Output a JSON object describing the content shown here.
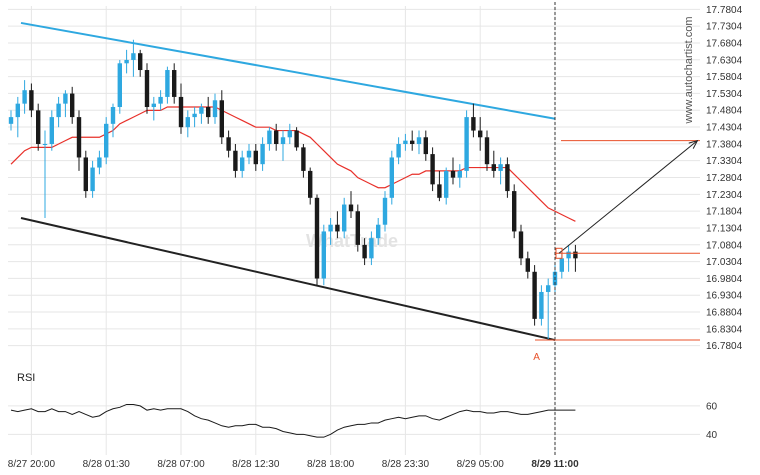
{
  "chart_data": [
    {
      "type": "candlestick",
      "colors": {
        "up": "#2ea8e0",
        "down": "#1a1a1a",
        "ma": "#e8302a",
        "channel_upper": "#2ea8e0",
        "channel_lower": "#222222",
        "target": "#e8512a",
        "current": "#e8512a",
        "arrow": "#222222",
        "vline": "#333333",
        "grid": "#e6e6e6"
      },
      "y_ticks": [
        "17.7804",
        "17.7304",
        "17.6804",
        "17.6304",
        "17.5804",
        "17.5304",
        "17.4804",
        "17.4304",
        "17.3804",
        "17.3304",
        "17.2804",
        "17.2304",
        "17.1804",
        "17.1304",
        "17.0804",
        "17.0304",
        "16.9804",
        "16.9304",
        "16.8804",
        "16.8304",
        "16.7804"
      ],
      "ylim": [
        16.7704,
        17.7904
      ],
      "x_ticks": [
        {
          "label": "8/27 20:00",
          "idx": 3
        },
        {
          "label": "8/28 01:30",
          "idx": 14
        },
        {
          "label": "8/28 07:00",
          "idx": 25
        },
        {
          "label": "8/28 12:30",
          "idx": 36
        },
        {
          "label": "8/28 18:00",
          "idx": 47
        },
        {
          "label": "8/28 23:30",
          "idx": 58
        },
        {
          "label": "8/29 05:00",
          "idx": 69
        },
        {
          "label": "8/29 11:00",
          "idx": 80,
          "bold": true
        }
      ],
      "candles": [
        [
          17.44,
          17.48,
          17.42,
          17.46
        ],
        [
          17.46,
          17.52,
          17.4,
          17.5
        ],
        [
          17.5,
          17.57,
          17.47,
          17.54
        ],
        [
          17.54,
          17.56,
          17.46,
          17.48
        ],
        [
          17.48,
          17.5,
          17.36,
          17.38
        ],
        [
          17.38,
          17.42,
          17.16,
          17.38
        ],
        [
          17.38,
          17.48,
          17.36,
          17.46
        ],
        [
          17.46,
          17.52,
          17.43,
          17.5
        ],
        [
          17.5,
          17.54,
          17.46,
          17.53
        ],
        [
          17.53,
          17.55,
          17.44,
          17.46
        ],
        [
          17.46,
          17.48,
          17.3,
          17.34
        ],
        [
          17.34,
          17.36,
          17.22,
          17.24
        ],
        [
          17.24,
          17.33,
          17.22,
          17.31
        ],
        [
          17.31,
          17.36,
          17.29,
          17.34
        ],
        [
          17.34,
          17.46,
          17.32,
          17.44
        ],
        [
          17.44,
          17.5,
          17.4,
          17.49
        ],
        [
          17.49,
          17.63,
          17.47,
          17.62
        ],
        [
          17.62,
          17.66,
          17.59,
          17.63
        ],
        [
          17.63,
          17.69,
          17.58,
          17.65
        ],
        [
          17.65,
          17.66,
          17.58,
          17.6
        ],
        [
          17.6,
          17.62,
          17.47,
          17.49
        ],
        [
          17.49,
          17.52,
          17.45,
          17.5
        ],
        [
          17.5,
          17.54,
          17.48,
          17.52
        ],
        [
          17.52,
          17.61,
          17.5,
          17.6
        ],
        [
          17.6,
          17.62,
          17.5,
          17.52
        ],
        [
          17.52,
          17.56,
          17.41,
          17.43
        ],
        [
          17.43,
          17.48,
          17.4,
          17.46
        ],
        [
          17.46,
          17.49,
          17.43,
          17.47
        ],
        [
          17.47,
          17.5,
          17.44,
          17.49
        ],
        [
          17.49,
          17.52,
          17.44,
          17.46
        ],
        [
          17.46,
          17.53,
          17.44,
          17.51
        ],
        [
          17.51,
          17.54,
          17.38,
          17.4
        ],
        [
          17.4,
          17.42,
          17.34,
          17.36
        ],
        [
          17.36,
          17.38,
          17.28,
          17.3
        ],
        [
          17.3,
          17.36,
          17.28,
          17.34
        ],
        [
          17.34,
          17.38,
          17.32,
          17.36
        ],
        [
          17.36,
          17.38,
          17.3,
          17.32
        ],
        [
          17.32,
          17.4,
          17.3,
          17.38
        ],
        [
          17.38,
          17.43,
          17.36,
          17.42
        ],
        [
          17.42,
          17.44,
          17.36,
          17.38
        ],
        [
          17.38,
          17.42,
          17.33,
          17.4
        ],
        [
          17.4,
          17.44,
          17.38,
          17.42
        ],
        [
          17.42,
          17.43,
          17.36,
          17.37
        ],
        [
          17.37,
          17.38,
          17.28,
          17.3
        ],
        [
          17.3,
          17.31,
          17.2,
          17.22
        ],
        [
          17.22,
          17.23,
          16.96,
          16.98
        ],
        [
          16.98,
          17.14,
          16.96,
          17.12
        ],
        [
          17.12,
          17.16,
          17.08,
          17.14
        ],
        [
          17.14,
          17.18,
          17.1,
          17.12
        ],
        [
          17.12,
          17.22,
          17.1,
          17.2
        ],
        [
          17.2,
          17.24,
          17.16,
          17.18
        ],
        [
          17.18,
          17.2,
          17.06,
          17.08
        ],
        [
          17.08,
          17.1,
          17.02,
          17.04
        ],
        [
          17.04,
          17.12,
          17.02,
          17.1
        ],
        [
          17.1,
          17.16,
          17.08,
          17.14
        ],
        [
          17.14,
          17.24,
          17.12,
          17.22
        ],
        [
          17.22,
          17.36,
          17.2,
          17.34
        ],
        [
          17.34,
          17.4,
          17.32,
          17.38
        ],
        [
          17.38,
          17.41,
          17.36,
          17.39
        ],
        [
          17.39,
          17.42,
          17.36,
          17.38
        ],
        [
          17.38,
          17.42,
          17.35,
          17.4
        ],
        [
          17.4,
          17.42,
          17.33,
          17.35
        ],
        [
          17.35,
          17.37,
          17.24,
          17.26
        ],
        [
          17.26,
          17.3,
          17.21,
          17.22
        ],
        [
          17.22,
          17.31,
          17.2,
          17.3
        ],
        [
          17.3,
          17.34,
          17.26,
          17.28
        ],
        [
          17.28,
          17.32,
          17.25,
          17.3
        ],
        [
          17.3,
          17.48,
          17.28,
          17.46
        ],
        [
          17.46,
          17.5,
          17.4,
          17.42
        ],
        [
          17.42,
          17.46,
          17.36,
          17.4
        ],
        [
          17.4,
          17.42,
          17.3,
          17.32
        ],
        [
          17.32,
          17.36,
          17.28,
          17.3
        ],
        [
          17.3,
          17.34,
          17.26,
          17.32
        ],
        [
          17.32,
          17.34,
          17.22,
          17.24
        ],
        [
          17.24,
          17.26,
          17.1,
          17.12
        ],
        [
          17.12,
          17.14,
          17.02,
          17.04
        ],
        [
          17.04,
          17.06,
          16.98,
          17.0
        ],
        [
          17.0,
          17.02,
          16.84,
          16.86
        ],
        [
          16.86,
          16.96,
          16.84,
          16.94
        ],
        [
          16.94,
          16.98,
          16.8,
          16.96
        ],
        [
          16.96,
          17.02,
          16.94,
          17.0
        ],
        [
          17.0,
          17.06,
          16.98,
          17.04
        ],
        [
          17.04,
          17.08,
          17.0,
          17.06
        ],
        [
          17.06,
          17.08,
          17.0,
          17.04
        ]
      ],
      "moving_average": [
        17.32,
        17.34,
        17.36,
        17.37,
        17.37,
        17.37,
        17.37,
        17.38,
        17.39,
        17.4,
        17.4,
        17.4,
        17.4,
        17.4,
        17.41,
        17.42,
        17.44,
        17.45,
        17.46,
        17.47,
        17.48,
        17.48,
        17.48,
        17.49,
        17.49,
        17.49,
        17.49,
        17.49,
        17.49,
        17.49,
        17.49,
        17.48,
        17.47,
        17.46,
        17.45,
        17.44,
        17.43,
        17.43,
        17.43,
        17.42,
        17.42,
        17.42,
        17.42,
        17.41,
        17.4,
        17.38,
        17.36,
        17.34,
        17.32,
        17.31,
        17.3,
        17.28,
        17.27,
        17.26,
        17.25,
        17.25,
        17.26,
        17.27,
        17.28,
        17.29,
        17.29,
        17.3,
        17.3,
        17.3,
        17.3,
        17.3,
        17.3,
        17.31,
        17.31,
        17.31,
        17.31,
        17.31,
        17.31,
        17.31,
        17.29,
        17.27,
        17.25,
        17.23,
        17.21,
        17.19,
        17.18,
        17.17,
        17.16,
        17.15
      ],
      "channel_upper": {
        "start": [
          0,
          17.74
        ],
        "end": [
          80,
          17.455
        ]
      },
      "channel_lower": {
        "start": [
          0,
          17.16
        ],
        "end": [
          80,
          16.797
        ]
      },
      "target_level": 17.39,
      "current_level": 17.055,
      "support_level": 16.797,
      "arrow": {
        "from": [
          80,
          17.055
        ],
        "to": [
          98,
          17.39
        ]
      },
      "point_label": {
        "text": "A",
        "idx": 77,
        "value": 16.78
      },
      "watermark": "www.autochartist.com",
      "logo_text": "WhatTrade"
    },
    {
      "type": "line",
      "title": "RSI",
      "y_ticks": [
        "60",
        "40"
      ],
      "ylim": [
        36,
        74
      ],
      "values": [
        57,
        56,
        57,
        58,
        56,
        56,
        58,
        56,
        56,
        54,
        56,
        54,
        52,
        53,
        56,
        58,
        59,
        61,
        61,
        60,
        57,
        58,
        57,
        58,
        58,
        58,
        56,
        53,
        51,
        50,
        48,
        46,
        45,
        46,
        46,
        47,
        47,
        45,
        45,
        44,
        42,
        41,
        40,
        40,
        39,
        38,
        38,
        40,
        43,
        45,
        46,
        47,
        47,
        48,
        48,
        50,
        51,
        52,
        51,
        52,
        53,
        53,
        51,
        50,
        52,
        54,
        56,
        57,
        56,
        56,
        55,
        55,
        56,
        56,
        55,
        54,
        54,
        55,
        56,
        57,
        57,
        57,
        57,
        57
      ]
    }
  ]
}
